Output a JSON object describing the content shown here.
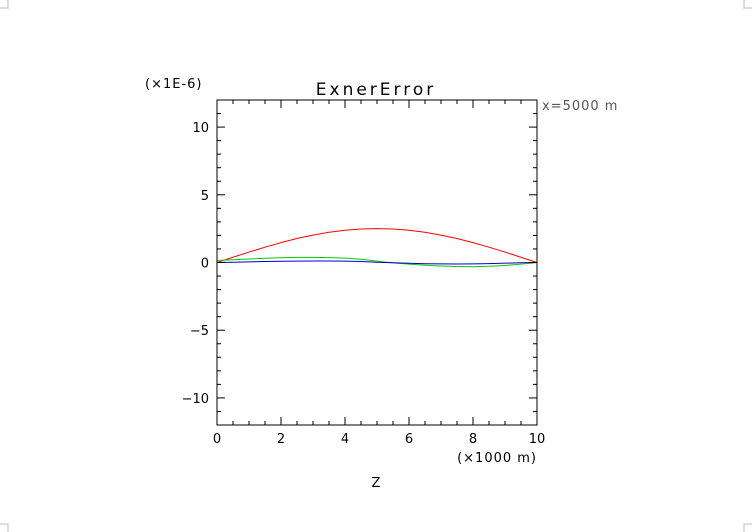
{
  "chart_data": {
    "type": "line",
    "title": "ExnerError",
    "annotation": "x=5000 m",
    "y_scale_label": "(×1E-6)",
    "xlabel": "Z",
    "x_units_label": "(×1000 m)",
    "xlim": [
      0,
      10
    ],
    "ylim": [
      -12,
      12
    ],
    "x_ticks": [
      0,
      2,
      4,
      6,
      8,
      10
    ],
    "x_tick_labels": [
      "0",
      "2",
      "4",
      "6",
      "8",
      "10"
    ],
    "y_ticks": [
      -10,
      -5,
      0,
      5,
      10
    ],
    "y_tick_labels": [
      "−10",
      "−5",
      "0",
      "5",
      "10"
    ],
    "grid": false,
    "series": [
      {
        "color": "#ff0000",
        "x": [
          0,
          0.5,
          1,
          1.5,
          2,
          2.5,
          3,
          3.5,
          4,
          4.5,
          5,
          5.5,
          6,
          6.5,
          7,
          7.5,
          8,
          8.5,
          9,
          9.5,
          10
        ],
        "values": [
          0,
          0.39,
          0.77,
          1.13,
          1.47,
          1.77,
          2.02,
          2.23,
          2.38,
          2.47,
          2.5,
          2.47,
          2.38,
          2.23,
          2.02,
          1.77,
          1.47,
          1.13,
          0.77,
          0.39,
          0
        ]
      },
      {
        "color": "#00cc00",
        "x": [
          0,
          0.5,
          1,
          1.5,
          2,
          2.5,
          3,
          3.5,
          4,
          4.5,
          5,
          5.5,
          6,
          6.5,
          7,
          7.5,
          8,
          8.5,
          9,
          9.5,
          10
        ],
        "values": [
          0.15,
          0.2,
          0.26,
          0.31,
          0.35,
          0.38,
          0.38,
          0.36,
          0.32,
          0.24,
          0.1,
          -0.03,
          -0.12,
          -0.2,
          -0.26,
          -0.3,
          -0.31,
          -0.28,
          -0.22,
          -0.12,
          0
        ]
      },
      {
        "color": "#0000cc",
        "x": [
          0,
          0.5,
          1,
          1.5,
          2,
          2.5,
          3,
          3.5,
          4,
          4.5,
          5,
          5.5,
          6,
          6.5,
          7,
          7.5,
          8,
          8.5,
          9,
          9.5,
          10
        ],
        "values": [
          0,
          0.02,
          0.05,
          0.07,
          0.09,
          0.1,
          0.11,
          0.11,
          0.1,
          0.07,
          0.02,
          -0.02,
          -0.06,
          -0.09,
          -0.1,
          -0.11,
          -0.1,
          -0.08,
          -0.05,
          -0.02,
          0
        ]
      }
    ]
  }
}
